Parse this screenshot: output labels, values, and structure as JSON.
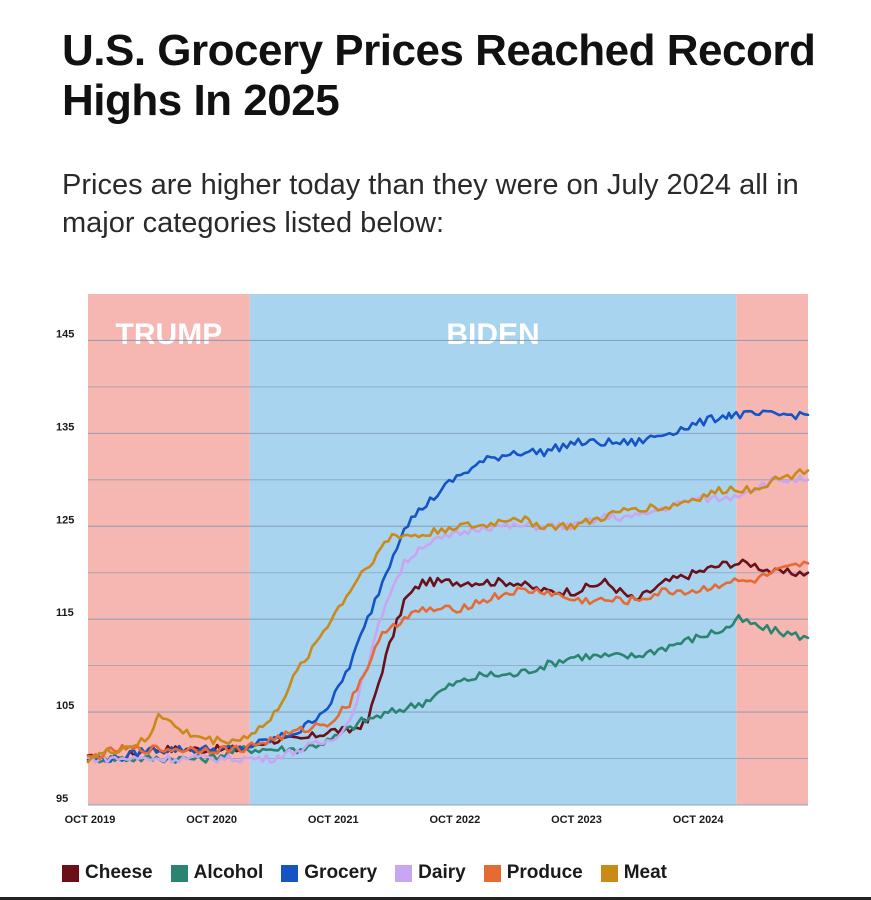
{
  "header": {
    "title": "U.S. Grocery Prices Reached Record Highs In 2025",
    "subtitle": "Prices are higher today than they were on July 2024 all in major categories listed below:"
  },
  "chart_data": {
    "type": "line",
    "title": "U.S. Grocery Prices Reached Record Highs In 2025",
    "subtitle": "Prices are higher today than they were on July 2024 all in major categories listed below:",
    "xlabel": "",
    "ylabel": "",
    "xlim": [
      2019.75,
      2025.67
    ],
    "ylim": [
      95,
      150
    ],
    "yticks": [
      95,
      105,
      115,
      125,
      135,
      145
    ],
    "xticks": [
      {
        "label": "OCT 2019",
        "x": 2019.75
      },
      {
        "label": "OCT 2020",
        "x": 2020.75
      },
      {
        "label": "OCT 2021",
        "x": 2021.75
      },
      {
        "label": "OCT 2022",
        "x": 2022.75
      },
      {
        "label": "OCT 2023",
        "x": 2023.75
      },
      {
        "label": "OCT 2024",
        "x": 2024.75
      }
    ],
    "grid": true,
    "legend_position": "bottom",
    "regions": [
      {
        "label": "TRUMP",
        "from": 2019.75,
        "to": 2021.08,
        "color": "#f6b6b1"
      },
      {
        "label": "BIDEN",
        "from": 2021.08,
        "to": 2025.08,
        "color": "#a9d4ef"
      },
      {
        "label": "",
        "from": 2025.08,
        "to": 2025.67,
        "color": "#f6b6b1"
      }
    ],
    "series": [
      {
        "name": "Cheese",
        "color": "#6b1019",
        "x": [
          2019.75,
          2020.0,
          2020.25,
          2020.5,
          2020.75,
          2021.0,
          2021.25,
          2021.5,
          2021.75,
          2021.9,
          2022.05,
          2022.2,
          2022.35,
          2022.5,
          2022.75,
          2023.0,
          2023.25,
          2023.5,
          2023.75,
          2024.0,
          2024.25,
          2024.5,
          2024.75,
          2025.0,
          2025.2,
          2025.4,
          2025.67
        ],
        "values": [
          100,
          100,
          101,
          101,
          101,
          101,
          102,
          102,
          103,
          103,
          104,
          111,
          117,
          119,
          119,
          119,
          119,
          118,
          118,
          119,
          117,
          119,
          120,
          121,
          121,
          120,
          120
        ]
      },
      {
        "name": "Alcohol",
        "color": "#2a8470",
        "x": [
          2019.75,
          2020.0,
          2020.25,
          2020.5,
          2020.75,
          2021.0,
          2021.25,
          2021.5,
          2021.75,
          2022.0,
          2022.25,
          2022.5,
          2022.75,
          2023.0,
          2023.25,
          2023.5,
          2023.75,
          2024.0,
          2024.25,
          2024.5,
          2024.75,
          2025.0,
          2025.1,
          2025.3,
          2025.67
        ],
        "values": [
          100,
          100,
          100,
          100,
          100,
          101,
          101,
          101,
          102,
          104,
          105,
          106,
          108,
          109,
          109,
          110,
          111,
          111,
          111,
          112,
          113,
          114,
          115,
          114,
          113
        ]
      },
      {
        "name": "Grocery",
        "color": "#1554c4",
        "x": [
          2019.75,
          2020.0,
          2020.25,
          2020.5,
          2020.75,
          2021.0,
          2021.25,
          2021.5,
          2021.75,
          2021.9,
          2022.05,
          2022.2,
          2022.35,
          2022.5,
          2022.75,
          2023.0,
          2023.25,
          2023.5,
          2023.75,
          2024.0,
          2024.25,
          2024.5,
          2024.75,
          2025.0,
          2025.08,
          2025.3,
          2025.67
        ],
        "values": [
          100,
          100,
          101,
          101,
          101,
          101,
          102,
          103,
          106,
          110,
          115,
          120,
          125,
          127,
          130,
          132,
          133,
          133,
          134,
          134,
          134,
          135,
          136,
          137,
          137,
          137,
          137
        ]
      },
      {
        "name": "Dairy",
        "color": "#c9a6f2",
        "x": [
          2019.75,
          2020.0,
          2020.25,
          2020.5,
          2020.75,
          2021.0,
          2021.25,
          2021.5,
          2021.75,
          2021.9,
          2022.05,
          2022.2,
          2022.35,
          2022.5,
          2022.75,
          2023.0,
          2023.25,
          2023.5,
          2023.75,
          2024.0,
          2024.25,
          2024.5,
          2024.75,
          2025.0,
          2025.2,
          2025.4,
          2025.67
        ],
        "values": [
          100,
          100,
          100,
          100,
          100,
          100,
          100,
          101,
          102,
          104,
          110,
          117,
          121,
          123,
          124,
          125,
          125,
          125,
          125,
          126,
          126,
          127,
          128,
          128,
          129,
          130,
          130
        ]
      },
      {
        "name": "Produce",
        "color": "#e66a34",
        "x": [
          2019.75,
          2020.0,
          2020.25,
          2020.5,
          2020.75,
          2021.0,
          2021.25,
          2021.5,
          2021.75,
          2021.9,
          2022.05,
          2022.2,
          2022.35,
          2022.5,
          2022.75,
          2023.0,
          2023.25,
          2023.5,
          2023.75,
          2024.0,
          2024.25,
          2024.5,
          2024.75,
          2025.0,
          2025.2,
          2025.4,
          2025.67
        ],
        "values": [
          100,
          101,
          101,
          101,
          101,
          101,
          102,
          103,
          104,
          106,
          110,
          114,
          115,
          116,
          116,
          117,
          118,
          118,
          117,
          117,
          117,
          118,
          118,
          119,
          119,
          120,
          121
        ]
      },
      {
        "name": "Meat",
        "color": "#c98a18",
        "x": [
          2019.75,
          2020.0,
          2020.25,
          2020.33,
          2020.5,
          2020.75,
          2021.0,
          2021.25,
          2021.5,
          2021.75,
          2022.0,
          2022.25,
          2022.5,
          2022.75,
          2023.0,
          2023.25,
          2023.5,
          2023.75,
          2024.0,
          2024.25,
          2024.5,
          2024.75,
          2025.0,
          2025.2,
          2025.4,
          2025.67
        ],
        "values": [
          100,
          101,
          102,
          105,
          103,
          102,
          102,
          104,
          110,
          115,
          120,
          124,
          124,
          125,
          125,
          126,
          125,
          125,
          126,
          127,
          127,
          128,
          129,
          129,
          130,
          131
        ]
      }
    ]
  },
  "colors": {
    "trump_region": "#f6b6b1",
    "biden_region": "#a9d4ef",
    "gridline": "#7f99b3"
  }
}
